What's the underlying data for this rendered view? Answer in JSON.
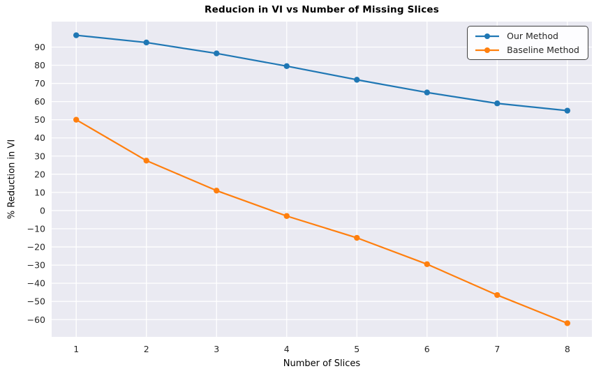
{
  "figure": {
    "background": "#ffffff",
    "plot_background": "#eaeaf2",
    "grid_color": "#ffffff",
    "tick_color": "#262626",
    "text_color": "#000000"
  },
  "chart_data": {
    "type": "line",
    "title": "Reducion in VI vs Number of Missing Slices",
    "xlabel": "Number of Slices",
    "ylabel": "% Reduction in VI",
    "x": [
      1,
      2,
      3,
      4,
      5,
      6,
      7,
      8
    ],
    "series": [
      {
        "name": "Our Method",
        "color": "#1f77b4",
        "values": [
          96.5,
          92.5,
          86.5,
          79.5,
          72,
          65,
          59,
          55
        ]
      },
      {
        "name": "Baseline Method",
        "color": "#ff7f0e",
        "values": [
          50,
          27.5,
          11,
          -3,
          -15,
          -29.5,
          -46.5,
          -62
        ]
      }
    ],
    "xlim": [
      0.65,
      8.35
    ],
    "ylim": [
      -69.5,
      104
    ],
    "xticks": [
      1,
      2,
      3,
      4,
      5,
      6,
      7,
      8
    ],
    "yticks": [
      90,
      80,
      70,
      60,
      50,
      40,
      30,
      20,
      10,
      0,
      -10,
      -20,
      -30,
      -40,
      -50,
      -60
    ],
    "grid": true,
    "marker": "circle",
    "legend_position": "upper right"
  }
}
